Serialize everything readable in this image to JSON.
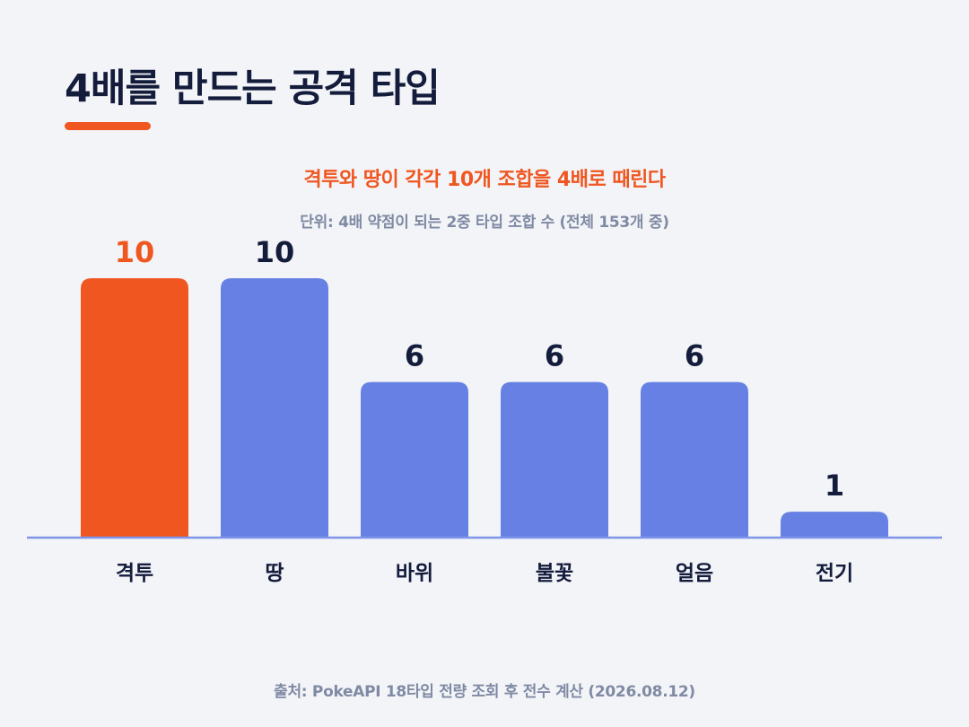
{
  "page": {
    "title": "4배를 만드는 공격 타입",
    "subtitle": "격투와 땅이 각각 10개 조합을 4배로 때린다",
    "unit_note": "단위: 4배 약점이 되는 2중 타입 조합 수 (전체 153개 중)",
    "source": "출처: PokeAPI 18타입 전량 조회 후 전수 계산 (2026.08.12)"
  },
  "colors": {
    "highlight": "#f0561f",
    "bar": "#6681e3",
    "baseline": "#7e95ea",
    "value_label": "#141c3c",
    "category_label": "#141c3c",
    "accent_underline": "#f0561f"
  },
  "chart_data": {
    "type": "bar",
    "title": "격투와 땅이 각각 10개 조합을 4배로 때린다",
    "subtitle": "단위: 4배 약점이 되는 2중 타입 조합 수 (전체 153개 중)",
    "xlabel": "",
    "ylabel": "",
    "categories": [
      "격투",
      "땅",
      "바위",
      "불꽃",
      "얼음",
      "전기"
    ],
    "values": [
      10,
      10,
      6,
      6,
      6,
      1
    ],
    "value_labels": [
      "10",
      "10",
      "6",
      "6",
      "6",
      "1"
    ],
    "highlight_index": 0,
    "ylim": [
      0,
      10
    ],
    "grid": false,
    "legend": "none"
  }
}
